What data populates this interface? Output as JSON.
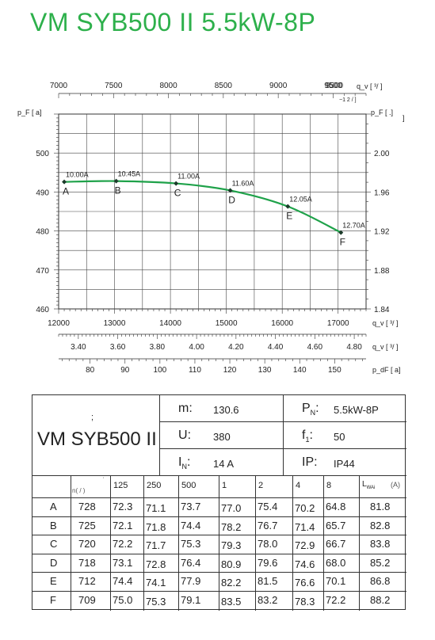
{
  "title": "VM SYB500 II 5.5kW-8P",
  "chart_data": {
    "type": "line",
    "axes": {
      "top_flow": {
        "label": "q_v [ ³/ ]",
        "sub": "−1 2 / ]",
        "ticks": [
          7000,
          7500,
          8000,
          8500,
          9000,
          9500,
          9500
        ],
        "range": [
          7000,
          9800
        ]
      },
      "left_pressure": {
        "label": "p_F [ a]",
        "ticks": [
          460,
          470,
          480,
          490,
          500
        ],
        "range": [
          460,
          510
        ]
      },
      "right_pressure": {
        "label": "p_F [ .]",
        "sub": "]",
        "ticks": [
          "1.84",
          "1.88",
          "1.92",
          "1.96",
          "2.00"
        ],
        "range": [
          1.84,
          2.04
        ]
      },
      "bottom_flow": {
        "label": "q_v [ ³/ ]",
        "ticks": [
          12000,
          13000,
          14000,
          15000,
          16000,
          17000
        ],
        "range": [
          12000,
          17500
        ]
      },
      "flow2": {
        "label": "q_v [ ³/ ]",
        "ticks": [
          "3.40",
          "3.60",
          "3.80",
          "4.00",
          "4.20",
          "4.40",
          "4.60",
          "4.80"
        ],
        "range": [
          3.3,
          4.86
        ]
      },
      "pressure2": {
        "label": "p_dF [ a]",
        "ticks": [
          80,
          90,
          100,
          110,
          120,
          130,
          140,
          150
        ],
        "range": [
          71,
          159
        ]
      }
    },
    "series": [
      {
        "points": [
          {
            "label": "A",
            "current": "10.00A",
            "x": 12100,
            "y": 492.6
          },
          {
            "label": "B",
            "current": "10.45A",
            "x": 13030,
            "y": 492.8
          },
          {
            "label": "C",
            "current": "11.00A",
            "x": 14100,
            "y": 492.2
          },
          {
            "label": "D",
            "current": "11.60A",
            "x": 15070,
            "y": 490.4
          },
          {
            "label": "E",
            "current": "12.05A",
            "x": 16100,
            "y": 486.3
          },
          {
            "label": "F",
            "current": "12.70A",
            "x": 17050,
            "y": 479.6
          }
        ]
      }
    ],
    "grid": true
  },
  "spec": {
    "mark": ";",
    "model": "VM SYB500 II",
    "params": [
      {
        "key": "m",
        "sub": "",
        "sep": ":",
        "value": "130.6"
      },
      {
        "key": "P",
        "sub": "N",
        "sep": ":",
        "value": "5.5kW-8P"
      },
      {
        "key": "U",
        "sub": "",
        "sep": ":",
        "value": "380"
      },
      {
        "key": "f",
        "sub": "1",
        "sep": ":",
        "value": "50"
      },
      {
        "key": "I",
        "sub": "N",
        "sep": ":",
        "value": "14  A"
      },
      {
        "key": "IP",
        "sub": "",
        "sep": ":",
        "value": "IP44"
      }
    ],
    "rpm_header_top": "'",
    "rpm_header": "n( / )",
    "freq_headers": [
      "125",
      "250",
      "500",
      "1",
      "2",
      "4",
      "8"
    ],
    "lwa_header": "L",
    "lwa_sub": "WAi",
    "lwa_unit": "(A)",
    "rows": [
      {
        "label": "A",
        "rpm": "728",
        "values": [
          "72.3",
          "71.1",
          "73.7",
          "77.0",
          "75.4",
          "70.2",
          "64.8"
        ],
        "lwa": "81.8"
      },
      {
        "label": "B",
        "rpm": "725",
        "values": [
          "72.1",
          "71.8",
          "74.4",
          "78.2",
          "76.7",
          "71.4",
          "65.7"
        ],
        "lwa": "82.8"
      },
      {
        "label": "C",
        "rpm": "720",
        "values": [
          "72.2",
          "71.7",
          "75.3",
          "79.3",
          "78.0",
          "72.9",
          "66.7"
        ],
        "lwa": "83.8"
      },
      {
        "label": "D",
        "rpm": "718",
        "values": [
          "73.1",
          "72.8",
          "76.4",
          "80.9",
          "79.6",
          "74.6",
          "68.0"
        ],
        "lwa": "85.2"
      },
      {
        "label": "E",
        "rpm": "712",
        "values": [
          "74.4",
          "74.1",
          "77.9",
          "82.2",
          "81.5",
          "76.6",
          "70.1"
        ],
        "lwa": "86.8"
      },
      {
        "label": "F",
        "rpm": "709",
        "values": [
          "75.0",
          "75.3",
          "79.1",
          "83.5",
          "83.2",
          "78.3",
          "72.2"
        ],
        "lwa": "88.2"
      }
    ]
  }
}
